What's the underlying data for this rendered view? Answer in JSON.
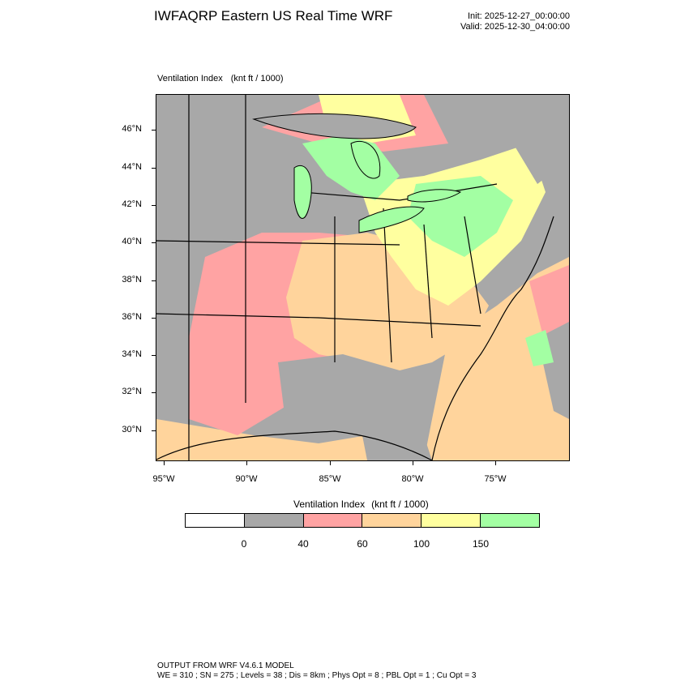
{
  "header": {
    "title": "IWFAQRP Eastern US Real Time WRF",
    "init": "Init: 2025-12-27_00:00:00",
    "valid": "Valid: 2025-12-30_04:00:00"
  },
  "map": {
    "field_name": "Ventilation Index",
    "field_unit": "(knt ft / 1000)",
    "lat_labels": [
      "46°N",
      "44°N",
      "42°N",
      "40°N",
      "38°N",
      "36°N",
      "34°N",
      "32°N",
      "30°N"
    ],
    "lon_labels": [
      "95°W",
      "90°W",
      "85°W",
      "80°W",
      "75°W"
    ],
    "background_color": "#a8a8a8"
  },
  "colorbar": {
    "title": "Ventilation Index",
    "unit": "(knt ft / 1000)",
    "colors": [
      "#ffffff",
      "#a8a8a8",
      "#ffa3a3",
      "#ffd49c",
      "#ffff9f",
      "#a3ffa3"
    ],
    "labels": [
      "0",
      "40",
      "60",
      "100",
      "150"
    ]
  },
  "footer": {
    "line1": "OUTPUT FROM WRF V4.6.1 MODEL",
    "line2": "WE = 310 ; SN = 275 ; Levels = 38 ; Dis = 8km ; Phys Opt = 8 ; PBL Opt = 1 ; Cu Opt = 3"
  }
}
